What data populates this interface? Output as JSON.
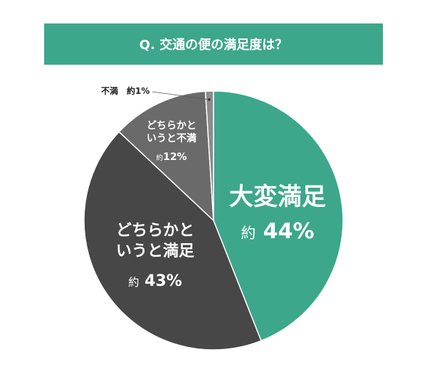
{
  "chart_data": {
    "type": "pie",
    "title": "Q. 交通の便の満足度は？",
    "categories": [
      "大変満足",
      "どちらかというと満足",
      "どちらかというと不満",
      "不満"
    ],
    "values": [
      44,
      43,
      12,
      1
    ],
    "value_labels": [
      "約 44%",
      "約 43%",
      "約12%",
      "約1%"
    ],
    "colors": [
      "#3ca78b",
      "#474747",
      "#6a6a6a",
      "#8c8c8c"
    ]
  }
}
